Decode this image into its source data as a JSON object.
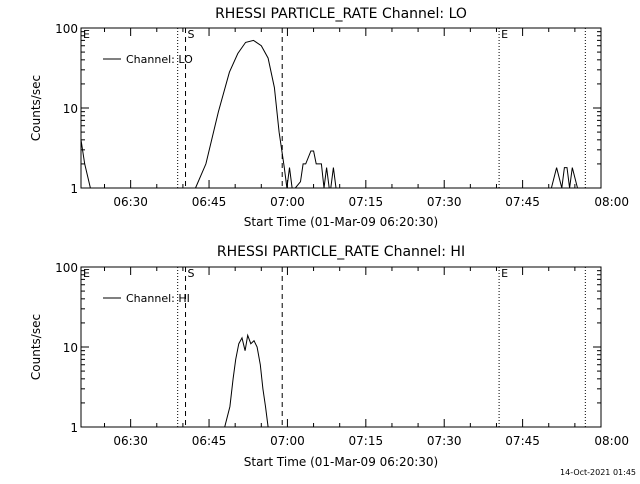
{
  "footer": {
    "timestamp": "14-Oct-2021 01:45"
  },
  "chart_data": [
    {
      "type": "line",
      "title": "RHESSI PARTICLE_RATE Channel: LO",
      "xlabel": "Start Time (01-Mar-09 06:20:30)",
      "ylabel": "Counts/sec",
      "y_scale": "log",
      "ylim": [
        1,
        100
      ],
      "xlim": [
        "06:20:30",
        "08:00:00"
      ],
      "x_tick_labels": [
        "06:30",
        "06:45",
        "07:00",
        "07:15",
        "07:30",
        "07:45",
        "08:00"
      ],
      "y_tick_labels": [
        "1",
        "10",
        "100"
      ],
      "legend": {
        "position": "top-left",
        "entries": [
          "Channel: LO"
        ]
      },
      "series": [
        {
          "name": "Channel: LO",
          "x": [
            "06:20:30",
            "06:21:12",
            "06:22:18",
            "06:42:24",
            "06:44:24",
            "06:46:48",
            "06:48:54",
            "06:50:30",
            "06:52:00",
            "06:53:30",
            "06:55:00",
            "06:56:18",
            "06:57:30",
            "06:58:24",
            "06:59:24",
            "06:59:54",
            "07:00:24",
            "07:00:54",
            "07:01:30",
            "07:02:30",
            "07:03:00",
            "07:03:30",
            "07:04:30",
            "07:05:00",
            "07:05:30",
            "07:06:30",
            "07:07:00",
            "07:07:30",
            "07:08:00",
            "07:08:18",
            "07:08:48",
            "07:09:18",
            "07:50:30",
            "07:51:30",
            "07:52:30",
            "07:53:00",
            "07:53:30",
            "07:54:00",
            "07:54:30",
            "07:55:30",
            "07:56:30"
          ],
          "y": [
            4,
            2,
            1,
            1,
            2,
            9,
            28,
            48,
            66,
            70,
            60,
            42,
            18,
            5,
            1.8,
            1,
            1.8,
            1,
            1,
            1.2,
            2,
            2,
            2.9,
            2.9,
            2,
            2,
            1,
            1.8,
            1,
            1,
            1.8,
            1,
            1,
            1.8,
            1,
            1.8,
            1.8,
            1,
            1.8,
            1,
            1
          ]
        }
      ],
      "annotations": [
        {
          "label": "E",
          "x": "06:20:30",
          "style": "dotted"
        },
        {
          "label": "",
          "x": "06:39:00",
          "style": "dotted"
        },
        {
          "label": "S",
          "x": "06:40:30",
          "style": "dashed"
        },
        {
          "label": "",
          "x": "06:59:00",
          "style": "dashed"
        },
        {
          "label": "E",
          "x": "07:40:30",
          "style": "dotted"
        },
        {
          "label": "",
          "x": "07:57:00",
          "style": "dotted"
        }
      ]
    },
    {
      "type": "line",
      "title": "RHESSI PARTICLE_RATE Channel: HI",
      "xlabel": "Start Time (01-Mar-09 06:20:30)",
      "ylabel": "Counts/sec",
      "y_scale": "log",
      "ylim": [
        1,
        100
      ],
      "xlim": [
        "06:20:30",
        "08:00:00"
      ],
      "x_tick_labels": [
        "06:30",
        "06:45",
        "07:00",
        "07:15",
        "07:30",
        "07:45",
        "08:00"
      ],
      "y_tick_labels": [
        "1",
        "10",
        "100"
      ],
      "legend": {
        "position": "top-left",
        "entries": [
          "Channel: HI"
        ]
      },
      "series": [
        {
          "name": "Channel: HI",
          "x": [
            "06:48:00",
            "06:49:00",
            "06:49:36",
            "06:50:06",
            "06:50:42",
            "06:51:18",
            "06:51:54",
            "06:52:24",
            "06:53:00",
            "06:53:36",
            "06:54:12",
            "06:54:48",
            "06:55:18",
            "06:55:48",
            "06:56:18"
          ],
          "y": [
            1,
            1.8,
            4,
            7,
            11,
            13,
            9,
            14,
            11,
            12,
            10,
            6,
            3,
            1.8,
            1
          ]
        }
      ],
      "annotations": [
        {
          "label": "E",
          "x": "06:20:30",
          "style": "dotted"
        },
        {
          "label": "",
          "x": "06:39:00",
          "style": "dotted"
        },
        {
          "label": "S",
          "x": "06:40:30",
          "style": "dashed"
        },
        {
          "label": "",
          "x": "06:59:00",
          "style": "dashed"
        },
        {
          "label": "E",
          "x": "07:40:30",
          "style": "dotted"
        },
        {
          "label": "",
          "x": "07:57:00",
          "style": "dotted"
        }
      ]
    }
  ]
}
